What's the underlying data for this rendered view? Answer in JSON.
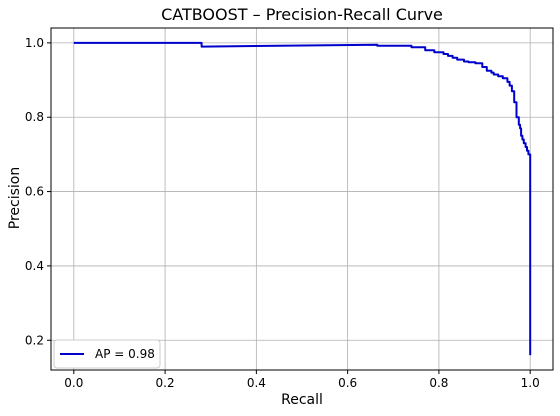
{
  "chart_data": {
    "type": "line",
    "title": "CATBOOST – Precision-Recall Curve",
    "xlabel": "Recall",
    "ylabel": "Precision",
    "xlim": [
      -0.05,
      1.05
    ],
    "ylim": [
      0.12,
      1.04
    ],
    "xticks": [
      0.0,
      0.2,
      0.4,
      0.6,
      0.8,
      1.0
    ],
    "yticks": [
      0.2,
      0.4,
      0.6,
      0.8,
      1.0
    ],
    "xtick_labels": [
      "0.0",
      "0.2",
      "0.4",
      "0.6",
      "0.8",
      "1.0"
    ],
    "ytick_labels": [
      "0.2",
      "0.4",
      "0.6",
      "0.8",
      "1.0"
    ],
    "grid": true,
    "legend_position": "lower-left",
    "series": [
      {
        "name": "AP = 0.98",
        "color": "#0000cd",
        "x": [
          0.0,
          0.28,
          0.28,
          0.665,
          0.665,
          0.74,
          0.74,
          0.77,
          0.77,
          0.79,
          0.79,
          0.81,
          0.81,
          0.82,
          0.82,
          0.83,
          0.83,
          0.84,
          0.84,
          0.855,
          0.855,
          0.865,
          0.865,
          0.88,
          0.88,
          0.895,
          0.895,
          0.905,
          0.905,
          0.915,
          0.915,
          0.92,
          0.92,
          0.93,
          0.93,
          0.94,
          0.94,
          0.95,
          0.95,
          0.955,
          0.955,
          0.96,
          0.96,
          0.965,
          0.965,
          0.97,
          0.97,
          0.975,
          0.975,
          0.978,
          0.978,
          0.98,
          0.98,
          0.983,
          0.983,
          0.986,
          0.986,
          0.99,
          0.99,
          0.993,
          0.993,
          0.996,
          0.996,
          1.0,
          1.0
        ],
        "y": [
          1.0,
          1.0,
          0.99,
          0.995,
          0.992,
          0.992,
          0.988,
          0.988,
          0.98,
          0.98,
          0.975,
          0.975,
          0.97,
          0.97,
          0.965,
          0.965,
          0.96,
          0.96,
          0.955,
          0.955,
          0.95,
          0.95,
          0.948,
          0.948,
          0.945,
          0.945,
          0.935,
          0.935,
          0.925,
          0.925,
          0.92,
          0.92,
          0.915,
          0.915,
          0.91,
          0.91,
          0.905,
          0.905,
          0.895,
          0.895,
          0.885,
          0.885,
          0.87,
          0.87,
          0.84,
          0.84,
          0.8,
          0.8,
          0.78,
          0.78,
          0.77,
          0.77,
          0.75,
          0.75,
          0.74,
          0.74,
          0.73,
          0.73,
          0.72,
          0.72,
          0.71,
          0.71,
          0.7,
          0.7,
          0.16
        ]
      }
    ]
  }
}
